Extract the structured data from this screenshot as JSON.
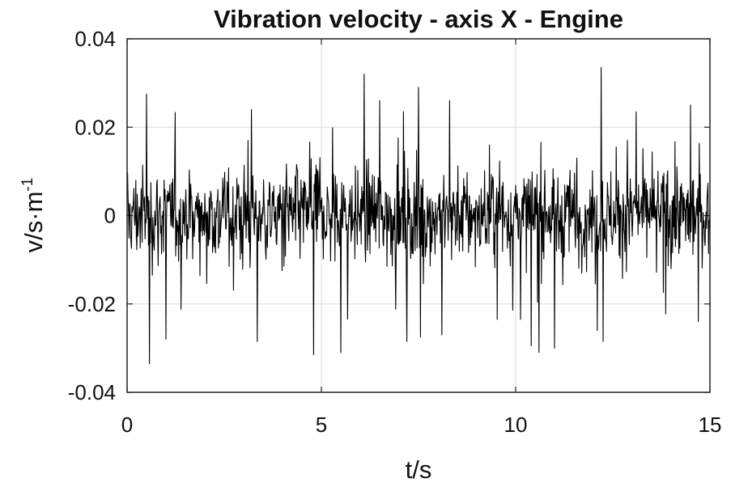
{
  "chart_data": {
    "type": "line",
    "title": "Vibration velocity - axis X - Engine",
    "xlabel": "t/s",
    "ylabel": "v/s·m",
    "ylabel_superscript": "-1",
    "xlim": [
      0,
      15
    ],
    "ylim": [
      -0.04,
      0.04
    ],
    "x_ticks": [
      "0",
      "5",
      "10",
      "15"
    ],
    "y_ticks": [
      "0.04",
      "0.02",
      "0",
      "-0.02",
      "-0.04"
    ],
    "grid": true,
    "series": [
      {
        "color": "#000000",
        "sample_interval_s": 0.0125,
        "baseline_amplitude": 0.0075,
        "notable_peaks": [
          {
            "t": 0.5,
            "v": 0.0275
          },
          {
            "t": 0.58,
            "v": -0.0335
          },
          {
            "t": 1.0,
            "v": -0.028
          },
          {
            "t": 3.2,
            "v": 0.024
          },
          {
            "t": 3.35,
            "v": -0.0285
          },
          {
            "t": 4.8,
            "v": -0.0315
          },
          {
            "t": 5.5,
            "v": -0.031
          },
          {
            "t": 6.1,
            "v": 0.032
          },
          {
            "t": 6.5,
            "v": 0.026
          },
          {
            "t": 7.2,
            "v": -0.0285
          },
          {
            "t": 7.5,
            "v": 0.029
          },
          {
            "t": 7.55,
            "v": -0.0275
          },
          {
            "t": 8.1,
            "v": -0.027
          },
          {
            "t": 8.3,
            "v": 0.026
          },
          {
            "t": 10.4,
            "v": -0.0295
          },
          {
            "t": 10.6,
            "v": -0.031
          },
          {
            "t": 11.0,
            "v": -0.03
          },
          {
            "t": 12.1,
            "v": -0.026
          },
          {
            "t": 12.2,
            "v": 0.0335
          },
          {
            "t": 12.25,
            "v": -0.0285
          },
          {
            "t": 14.5,
            "v": 0.025
          },
          {
            "t": 14.7,
            "v": -0.024
          }
        ]
      }
    ]
  }
}
